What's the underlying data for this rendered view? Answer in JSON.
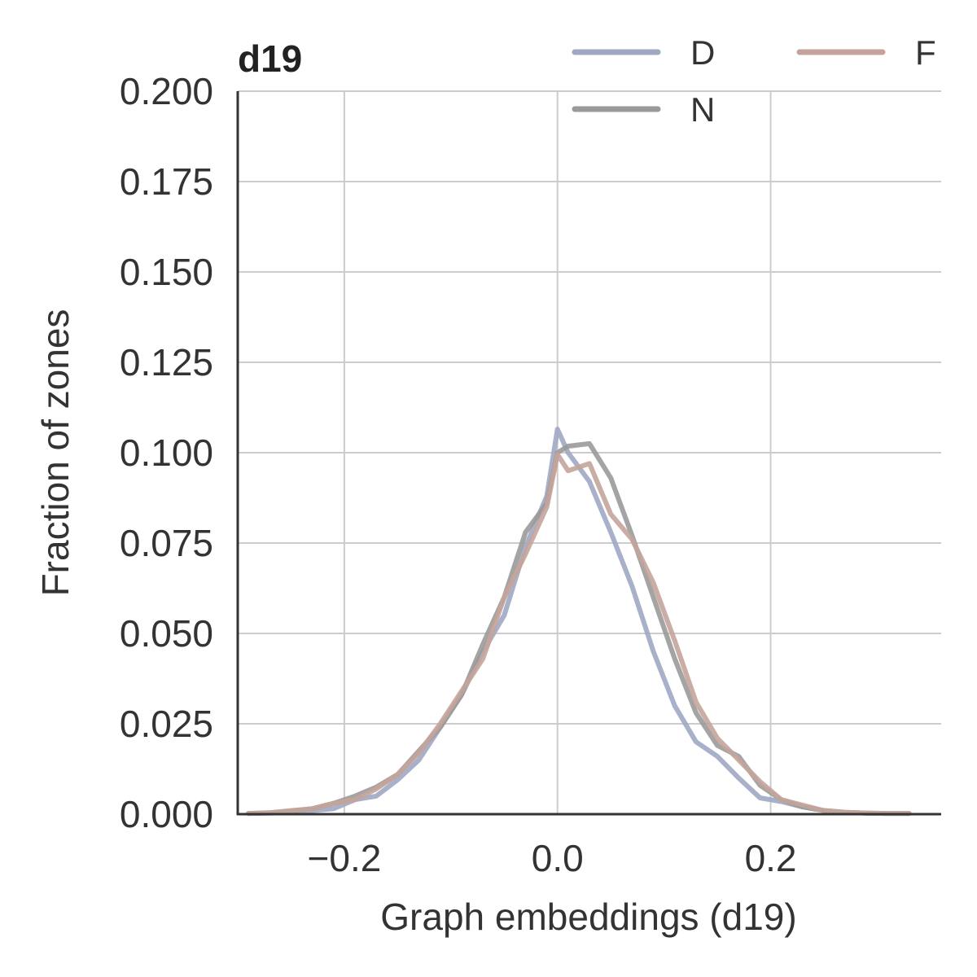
{
  "chart_data": {
    "type": "line",
    "title": "d19",
    "xlabel": "Graph embeddings (d19)",
    "ylabel": "Fraction of zones",
    "xlim": [
      -0.3,
      0.36
    ],
    "ylim": [
      0,
      0.2
    ],
    "xticks": [
      -0.2,
      0.0,
      0.2
    ],
    "xtick_labels": [
      "−0.2",
      "0.0",
      "0.2"
    ],
    "yticks": [
      0,
      0.025,
      0.05,
      0.075,
      0.1,
      0.125,
      0.15,
      0.175,
      0.2
    ],
    "ytick_labels": [
      "0.000",
      "0.025",
      "0.050",
      "0.075",
      "0.100",
      "0.125",
      "0.150",
      "0.175",
      "0.200"
    ],
    "grid": true,
    "legend_position": "top-right",
    "series": [
      {
        "name": "D",
        "color": "#a0a8c4",
        "x": [
          -0.29,
          -0.27,
          -0.25,
          -0.23,
          -0.21,
          -0.19,
          -0.17,
          -0.15,
          -0.13,
          -0.11,
          -0.09,
          -0.07,
          -0.05,
          -0.03,
          -0.01,
          0.0,
          0.01,
          0.03,
          0.05,
          0.07,
          0.09,
          0.11,
          0.13,
          0.15,
          0.17,
          0.19,
          0.21,
          0.23,
          0.25,
          0.27,
          0.29,
          0.31,
          0.33
        ],
        "y": [
          0.0002,
          0.0003,
          0.0005,
          0.001,
          0.0015,
          0.004,
          0.005,
          0.0095,
          0.015,
          0.024,
          0.033,
          0.045,
          0.055,
          0.074,
          0.088,
          0.1065,
          0.1,
          0.092,
          0.078,
          0.063,
          0.045,
          0.03,
          0.02,
          0.016,
          0.01,
          0.0045,
          0.0035,
          0.002,
          0.001,
          0.0005,
          0.0003,
          0.0002,
          0.0002
        ]
      },
      {
        "name": "N",
        "color": "#9a9a9a",
        "x": [
          -0.29,
          -0.27,
          -0.25,
          -0.23,
          -0.21,
          -0.19,
          -0.17,
          -0.15,
          -0.13,
          -0.11,
          -0.09,
          -0.07,
          -0.05,
          -0.03,
          -0.01,
          0.0,
          0.01,
          0.03,
          0.05,
          0.07,
          0.09,
          0.11,
          0.13,
          0.15,
          0.17,
          0.19,
          0.21,
          0.23,
          0.25,
          0.27,
          0.29,
          0.31,
          0.33
        ],
        "y": [
          0.0002,
          0.0004,
          0.0008,
          0.0015,
          0.003,
          0.005,
          0.0075,
          0.011,
          0.0175,
          0.024,
          0.033,
          0.047,
          0.06,
          0.078,
          0.086,
          0.1,
          0.1018,
          0.1025,
          0.093,
          0.077,
          0.06,
          0.043,
          0.028,
          0.019,
          0.016,
          0.008,
          0.004,
          0.002,
          0.001,
          0.0005,
          0.0003,
          0.0002,
          0.0002
        ]
      },
      {
        "name": "F",
        "color": "#c4a49a",
        "x": [
          -0.29,
          -0.27,
          -0.25,
          -0.23,
          -0.21,
          -0.19,
          -0.17,
          -0.15,
          -0.13,
          -0.11,
          -0.09,
          -0.07,
          -0.05,
          -0.03,
          -0.01,
          0.0,
          0.01,
          0.03,
          0.05,
          0.07,
          0.09,
          0.11,
          0.13,
          0.15,
          0.17,
          0.19,
          0.21,
          0.23,
          0.25,
          0.27,
          0.29,
          0.31,
          0.33
        ],
        "y": [
          0.0002,
          0.0004,
          0.001,
          0.0015,
          0.003,
          0.004,
          0.007,
          0.011,
          0.017,
          0.025,
          0.034,
          0.043,
          0.06,
          0.072,
          0.085,
          0.0995,
          0.095,
          0.097,
          0.083,
          0.076,
          0.064,
          0.048,
          0.031,
          0.021,
          0.015,
          0.009,
          0.004,
          0.0025,
          0.001,
          0.0005,
          0.0003,
          0.0002,
          0.0002
        ]
      }
    ]
  }
}
